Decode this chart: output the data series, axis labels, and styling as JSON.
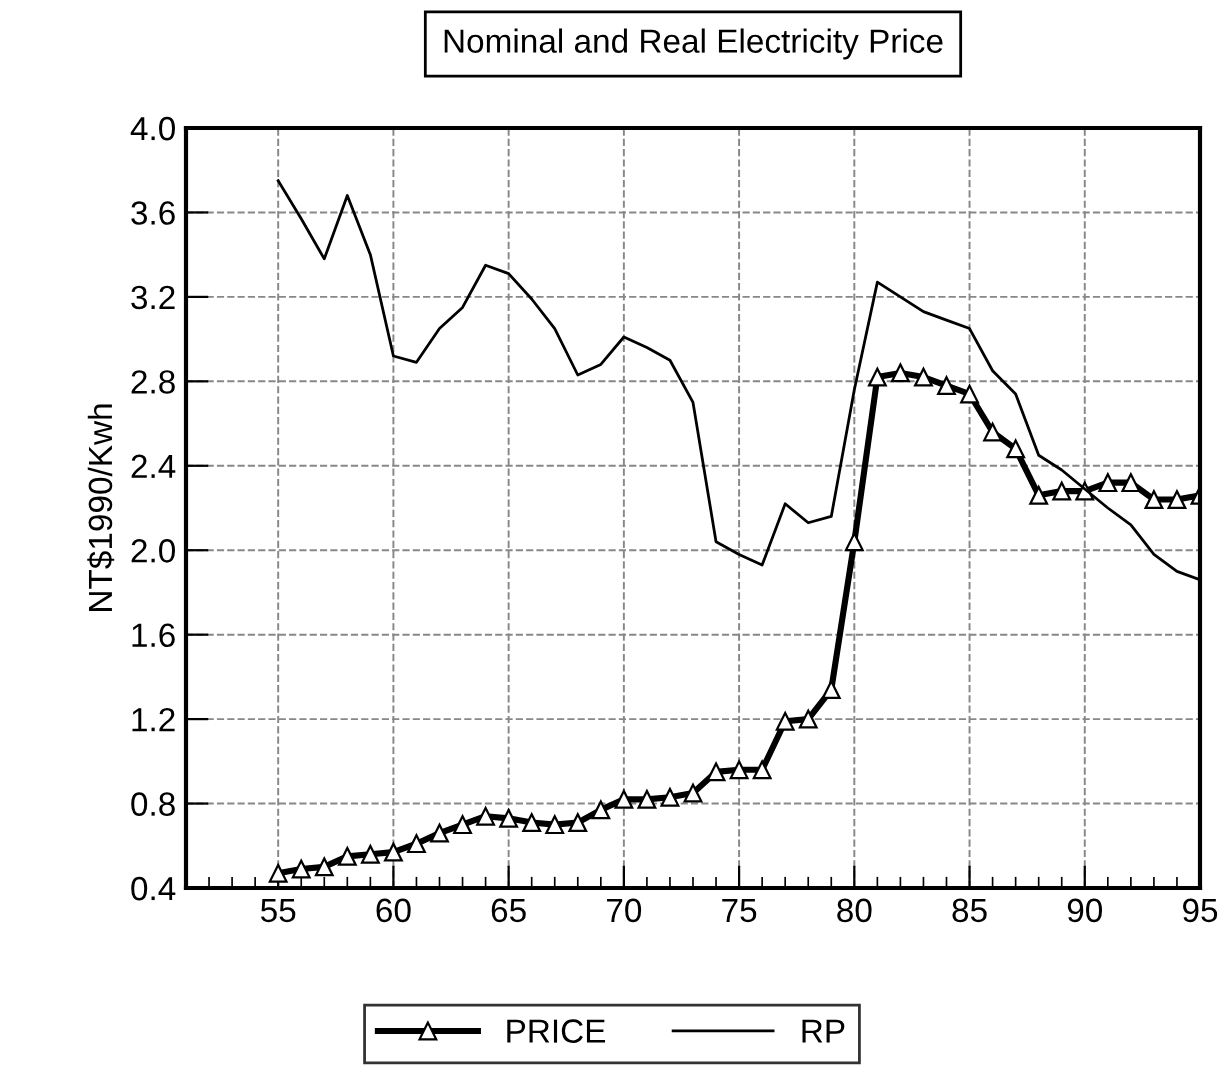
{
  "chart_data": {
    "type": "line",
    "title": "Nominal and Real Electricity Price",
    "ylabel": "NT$1990/Kwh",
    "x": [
      55,
      56,
      57,
      58,
      59,
      60,
      61,
      62,
      63,
      64,
      65,
      66,
      67,
      68,
      69,
      70,
      71,
      72,
      73,
      74,
      75,
      76,
      77,
      78,
      79,
      80,
      81,
      82,
      83,
      84,
      85,
      86,
      87,
      88,
      89,
      90,
      91,
      92,
      93,
      94,
      95
    ],
    "series": [
      {
        "name": "PRICE",
        "color": "#000000",
        "marker": "triangle",
        "values": [
          0.47,
          0.49,
          0.5,
          0.55,
          0.56,
          0.57,
          0.61,
          0.66,
          0.7,
          0.74,
          0.73,
          0.71,
          0.7,
          0.71,
          0.77,
          0.82,
          0.82,
          0.83,
          0.85,
          0.95,
          0.96,
          0.96,
          1.19,
          1.2,
          1.34,
          2.04,
          2.82,
          2.84,
          2.82,
          2.78,
          2.74,
          2.56,
          2.48,
          2.26,
          2.28,
          2.28,
          2.32,
          2.32,
          2.24,
          2.24,
          2.26
        ]
      },
      {
        "name": "RP",
        "color": "#000000",
        "marker": "none",
        "values": [
          3.75,
          3.57,
          3.38,
          3.68,
          3.4,
          2.92,
          2.89,
          3.05,
          3.15,
          3.35,
          3.31,
          3.19,
          3.05,
          2.83,
          2.88,
          3.01,
          2.96,
          2.9,
          2.7,
          2.04,
          1.98,
          1.93,
          2.22,
          2.13,
          2.16,
          2.76,
          3.27,
          3.2,
          3.13,
          3.09,
          3.05,
          2.85,
          2.74,
          2.45,
          2.38,
          2.29,
          2.2,
          2.12,
          1.98,
          1.9,
          1.86
        ]
      }
    ],
    "xlim": [
      51,
      95
    ],
    "xticks": [
      55,
      60,
      65,
      70,
      75,
      80,
      85,
      90,
      95
    ],
    "ylim": [
      0.4,
      4.0
    ],
    "yticks": [
      {
        "value": 0.4,
        "label": "0.4"
      },
      {
        "value": 0.8,
        "label": "0.8"
      },
      {
        "value": 1.2,
        "label": "1.2"
      },
      {
        "value": 1.6,
        "label": "1.6"
      },
      {
        "value": 2.0,
        "label": "2.0"
      },
      {
        "value": 2.4,
        "label": "2.4"
      },
      {
        "value": 2.8,
        "label": "2.8"
      },
      {
        "value": 3.2,
        "label": "3.2"
      },
      {
        "value": 3.6,
        "label": "3.6"
      },
      {
        "value": 4.0,
        "label": "4.0"
      }
    ],
    "grid": true,
    "legend": "bottom"
  }
}
